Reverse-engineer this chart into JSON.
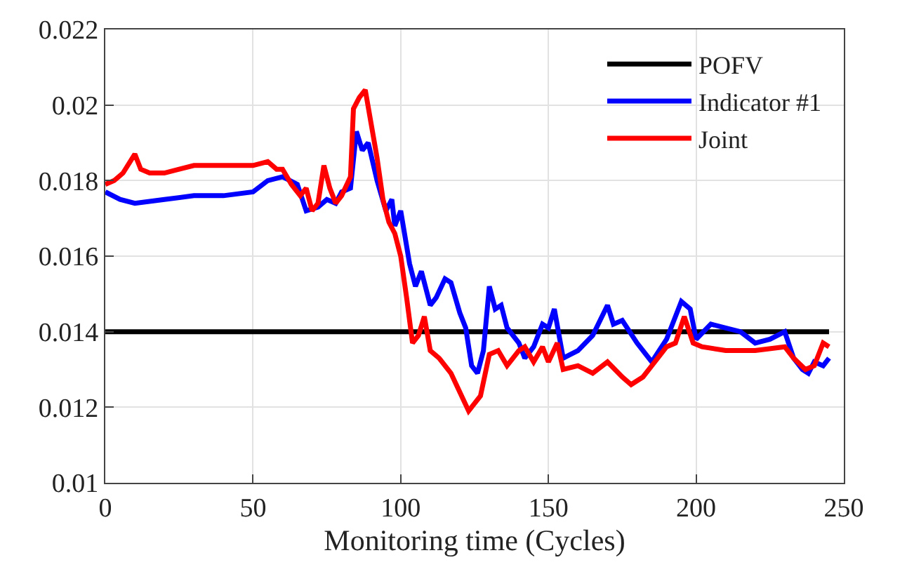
{
  "chart_data": {
    "type": "line",
    "xlabel": "Monitoring time (Cycles)",
    "xlim": [
      0,
      250
    ],
    "xticks": [
      0,
      50,
      100,
      150,
      200,
      250
    ],
    "ylim": [
      0.01,
      0.022
    ],
    "yticks": [
      0.01,
      0.012,
      0.014,
      0.016,
      0.018,
      0.02,
      0.022
    ],
    "grid": true,
    "legend": "top right",
    "line_style": "solid",
    "marker": "none",
    "series": [
      {
        "name": "POFV",
        "color": "#000000",
        "x": [
          0,
          245
        ],
        "values": [
          0.014,
          0.014
        ]
      },
      {
        "name": "Indicator #1",
        "color": "#0000ff",
        "x": [
          0,
          5,
          10,
          20,
          30,
          40,
          50,
          55,
          60,
          65,
          68,
          72,
          75,
          78,
          80,
          83,
          85,
          87,
          89,
          92,
          95,
          97,
          98,
          100,
          103,
          105,
          107,
          110,
          112,
          115,
          117,
          120,
          122,
          124,
          126,
          128,
          130,
          132,
          134,
          136,
          140,
          142,
          145,
          148,
          150,
          152,
          155,
          160,
          165,
          170,
          172,
          175,
          180,
          185,
          190,
          195,
          198,
          200,
          205,
          210,
          215,
          220,
          225,
          230,
          233,
          236,
          238,
          240,
          243,
          245
        ],
        "values": [
          0.0177,
          0.0175,
          0.0174,
          0.0175,
          0.0176,
          0.0176,
          0.0177,
          0.018,
          0.0181,
          0.0179,
          0.0172,
          0.0173,
          0.0175,
          0.0174,
          0.0177,
          0.0178,
          0.0193,
          0.0188,
          0.019,
          0.018,
          0.0172,
          0.0175,
          0.0168,
          0.0172,
          0.0158,
          0.0152,
          0.0156,
          0.0147,
          0.0149,
          0.0154,
          0.0153,
          0.0145,
          0.0141,
          0.0131,
          0.0129,
          0.0135,
          0.0152,
          0.0146,
          0.0147,
          0.0141,
          0.0137,
          0.0133,
          0.0136,
          0.0142,
          0.0141,
          0.0146,
          0.0133,
          0.0135,
          0.0139,
          0.0147,
          0.0142,
          0.0143,
          0.0137,
          0.0132,
          0.0138,
          0.0148,
          0.0146,
          0.0138,
          0.0142,
          0.0141,
          0.014,
          0.0137,
          0.0138,
          0.014,
          0.0133,
          0.013,
          0.0129,
          0.0132,
          0.0131,
          0.0133
        ]
      },
      {
        "name": "Joint",
        "color": "#ff0000",
        "x": [
          0,
          3,
          6,
          10,
          12,
          15,
          20,
          25,
          30,
          40,
          50,
          55,
          58,
          60,
          63,
          66,
          68,
          70,
          72,
          74,
          76,
          78,
          80,
          83,
          84,
          86,
          88,
          90,
          92,
          94,
          96,
          98,
          100,
          102,
          104,
          106,
          108,
          110,
          113,
          117,
          120,
          123,
          125,
          127,
          130,
          133,
          136,
          140,
          142,
          145,
          148,
          150,
          153,
          155,
          160,
          165,
          170,
          175,
          178,
          182,
          185,
          190,
          193,
          196,
          199,
          202,
          210,
          220,
          230,
          233,
          237,
          240,
          243,
          245
        ],
        "values": [
          0.0179,
          0.018,
          0.0182,
          0.0187,
          0.0183,
          0.0182,
          0.0182,
          0.0183,
          0.0184,
          0.0184,
          0.0184,
          0.0185,
          0.0183,
          0.0183,
          0.0179,
          0.0176,
          0.0178,
          0.0172,
          0.0174,
          0.0184,
          0.0178,
          0.0174,
          0.0176,
          0.0181,
          0.0199,
          0.0202,
          0.0204,
          0.0195,
          0.0186,
          0.0175,
          0.0169,
          0.0166,
          0.016,
          0.0149,
          0.0137,
          0.0139,
          0.0144,
          0.0135,
          0.0133,
          0.0129,
          0.0124,
          0.0119,
          0.0121,
          0.0123,
          0.0134,
          0.0135,
          0.0131,
          0.0135,
          0.0136,
          0.0132,
          0.0136,
          0.0132,
          0.0137,
          0.013,
          0.0131,
          0.0129,
          0.0132,
          0.0128,
          0.0126,
          0.0128,
          0.0131,
          0.0136,
          0.0137,
          0.0144,
          0.0137,
          0.0136,
          0.0135,
          0.0135,
          0.0136,
          0.0133,
          0.013,
          0.0131,
          0.0137,
          0.0136
        ]
      }
    ]
  }
}
